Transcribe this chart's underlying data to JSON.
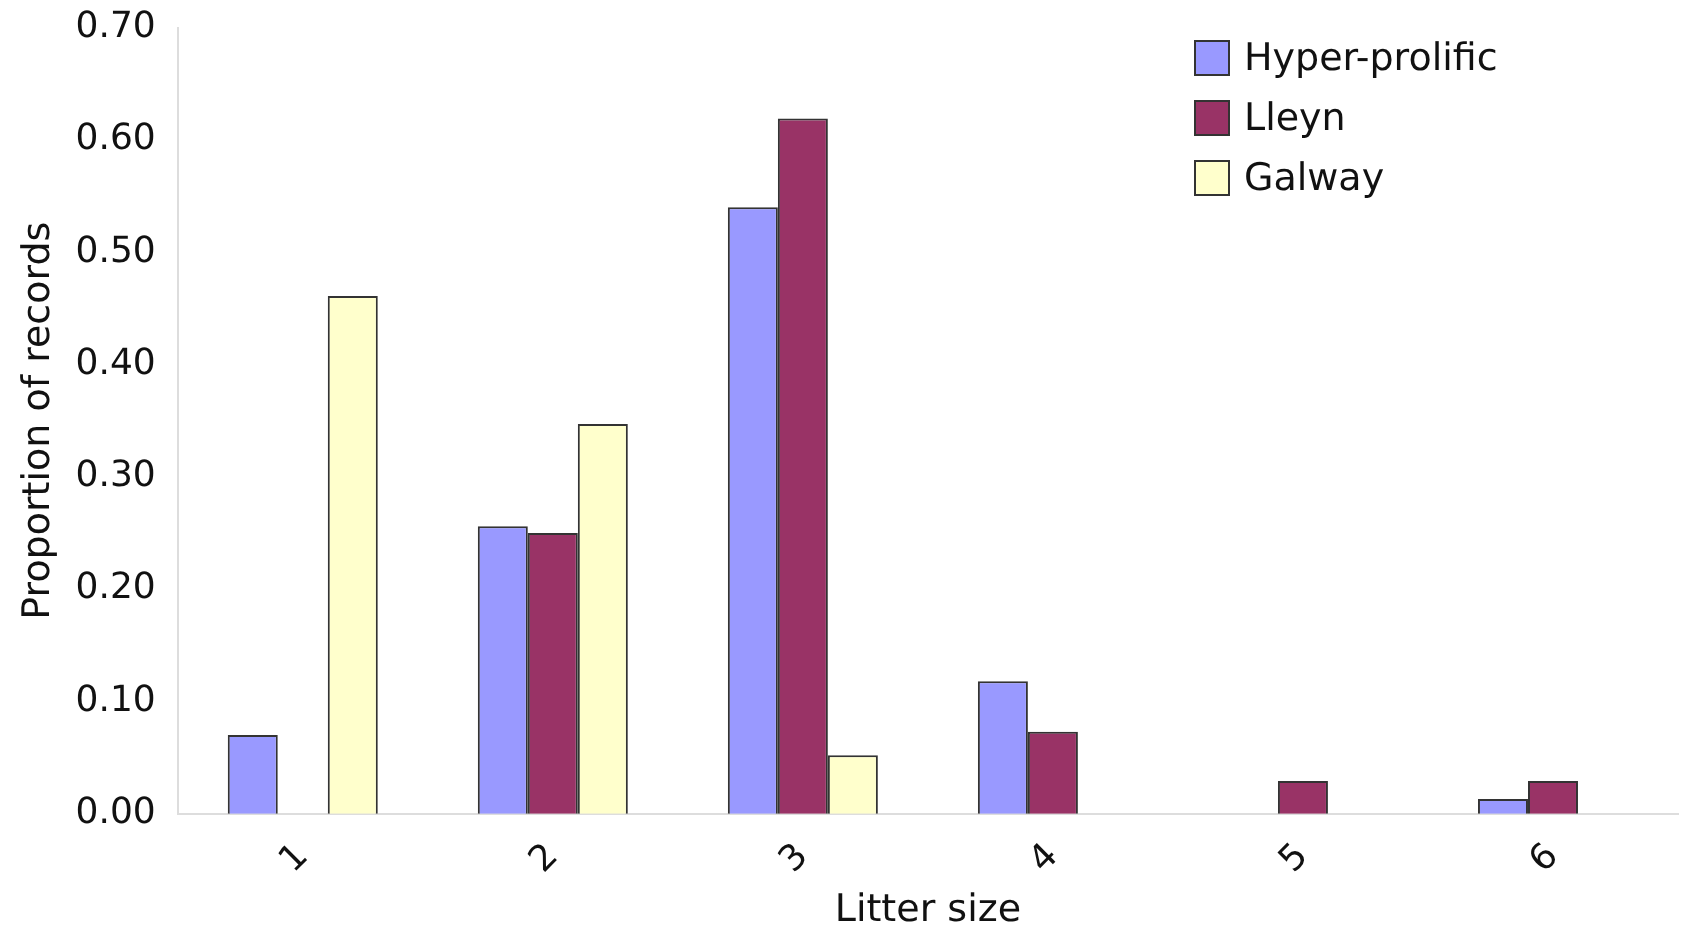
{
  "chart_data": {
    "type": "bar",
    "xlabel": "Litter size",
    "ylabel": "Proportion of records",
    "categories": [
      "1",
      "2",
      "3",
      "4",
      "5",
      "6"
    ],
    "series": [
      {
        "name": "Hyper-prolific",
        "color": "#9999ff",
        "values": [
          0.07,
          0.256,
          0.54,
          0.118,
          null,
          0.013
        ]
      },
      {
        "name": "Lleyn",
        "color": "#993366",
        "values": [
          null,
          0.25,
          0.619,
          0.073,
          0.029,
          0.029
        ]
      },
      {
        "name": "Galway",
        "color": "#ffffcc",
        "values": [
          0.461,
          0.347,
          0.052,
          null,
          null,
          null
        ]
      }
    ],
    "ylim": [
      0,
      0.7
    ],
    "yticks": [
      {
        "value": 0,
        "label": "0.00"
      },
      {
        "value": 0.1,
        "label": "0.10"
      },
      {
        "value": 0.2,
        "label": "0.20"
      },
      {
        "value": 0.3,
        "label": "0.30"
      },
      {
        "value": 0.4,
        "label": "0.40"
      },
      {
        "value": 0.5,
        "label": "0.50"
      },
      {
        "value": 0.6,
        "label": "0.60"
      },
      {
        "value": 0.7,
        "label": "0.70"
      }
    ],
    "grid": false,
    "legend": "top right"
  }
}
